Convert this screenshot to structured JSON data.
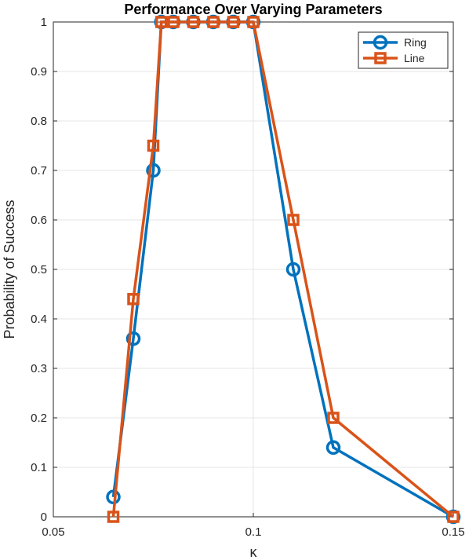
{
  "chart_data": {
    "type": "line",
    "title": "Performance Over Varying Parameters",
    "xlabel": "κ",
    "ylabel": "Probability of Success",
    "xlim": [
      0.05,
      0.15
    ],
    "ylim": [
      0,
      1
    ],
    "xticks": [
      0.05,
      0.1,
      0.15
    ],
    "xtick_labels": [
      "0.05",
      "0.1",
      "0.15"
    ],
    "yticks": [
      0,
      0.1,
      0.2,
      0.3,
      0.4,
      0.5,
      0.6,
      0.7,
      0.8,
      0.9,
      1
    ],
    "ytick_labels": [
      "0",
      "0.1",
      "0.2",
      "0.3",
      "0.4",
      "0.5",
      "0.6",
      "0.7",
      "0.8",
      "0.9",
      "1"
    ],
    "grid": true,
    "legend_position": "top-right",
    "series": [
      {
        "name": "Ring",
        "color": "#0072BD",
        "marker": "circle",
        "x": [
          0.065,
          0.07,
          0.075,
          0.077,
          0.08,
          0.085,
          0.09,
          0.095,
          0.1,
          0.11,
          0.12,
          0.15
        ],
        "y": [
          0.04,
          0.36,
          0.7,
          1,
          1,
          1,
          1,
          1,
          1,
          0.5,
          0.14,
          0
        ]
      },
      {
        "name": "Line",
        "color": "#D95319",
        "marker": "square",
        "x": [
          0.065,
          0.07,
          0.075,
          0.077,
          0.08,
          0.085,
          0.09,
          0.095,
          0.1,
          0.11,
          0.12,
          0.15
        ],
        "y": [
          0,
          0.44,
          0.75,
          1,
          1,
          1,
          1,
          1,
          1,
          0.6,
          0.2,
          0
        ]
      }
    ]
  }
}
